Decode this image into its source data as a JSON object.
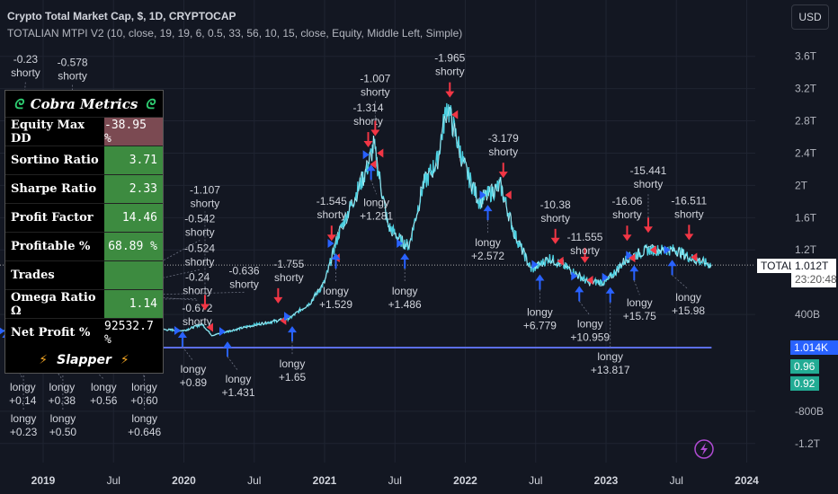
{
  "header": {
    "title": "Crypto Total Market Cap, $, 1D, CRYPTOCAP",
    "indicator": "TOTALIAN MTPI V2 (10, close, 19, 19, 6, 0.5, 33, 56, 10, 15, close, Equity, Middle Left, Simple)",
    "currency_button": "USD"
  },
  "colors": {
    "background": "#131722",
    "price_line": "#4dd0e1",
    "long": "#2962ff",
    "short": "#f23645",
    "equity_line": "#5b6ee8",
    "table_green": "#3d8b40",
    "table_red": "#7b4a52"
  },
  "price_tags": {
    "symbol": "TOTAL",
    "last": "1.012T",
    "countdown": "23:20:48",
    "equity": "1.014K",
    "green1": "0.96",
    "green2": "0.92"
  },
  "metrics": {
    "title": "Cobra Metrics",
    "rows": [
      {
        "label": "Equity Max DD",
        "value": "-38.95 %",
        "tone": "r"
      },
      {
        "label": "Sortino Ratio",
        "value": "3.71",
        "tone": "g"
      },
      {
        "label": "Sharpe Ratio",
        "value": "2.33",
        "tone": "g"
      },
      {
        "label": "Profit Factor",
        "value": "14.46",
        "tone": "g"
      },
      {
        "label": "Profitable %",
        "value": "68.89 %",
        "tone": "g"
      },
      {
        "label": "Trades",
        "value": "",
        "tone": "g"
      },
      {
        "label": "Omega Ratio Ω",
        "value": "1.14",
        "tone": "g"
      },
      {
        "label": "Net Profit %",
        "value": "92532.7 %",
        "tone": ""
      }
    ],
    "footer": "Slapper"
  },
  "chart_data": {
    "type": "line",
    "yunit": "USD",
    "ylim": [
      -1.4,
      3.8
    ],
    "yticks": [
      "3.6T",
      "3.2T",
      "2.8T",
      "2.4T",
      "2T",
      "1.6T",
      "1.2T",
      "400B",
      "-800B",
      "-1.2T"
    ],
    "ytick_values": [
      3.6,
      3.2,
      2.8,
      2.4,
      2.0,
      1.6,
      1.2,
      0.4,
      -0.8,
      -1.2
    ],
    "xticks": [
      "2019",
      "Jul",
      "2020",
      "Jul",
      "2021",
      "Jul",
      "2022",
      "Jul",
      "2023",
      "Jul",
      "2024"
    ],
    "xtick_values": [
      2019,
      2019.5,
      2020,
      2020.5,
      2021,
      2021.5,
      2022,
      2022.5,
      2023,
      2023.5,
      2024
    ],
    "grid": true,
    "price_T": [
      [
        2018.72,
        0.2
      ],
      [
        2019.0,
        0.13
      ],
      [
        2019.25,
        0.16
      ],
      [
        2019.45,
        0.35
      ],
      [
        2019.75,
        0.22
      ],
      [
        2020.0,
        0.2
      ],
      [
        2020.13,
        0.28
      ],
      [
        2020.2,
        0.14
      ],
      [
        2020.5,
        0.27
      ],
      [
        2020.75,
        0.35
      ],
      [
        2020.9,
        0.55
      ],
      [
        2021.0,
        0.8
      ],
      [
        2021.1,
        1.4
      ],
      [
        2021.3,
        2.2
      ],
      [
        2021.35,
        2.5
      ],
      [
        2021.45,
        1.5
      ],
      [
        2021.55,
        1.3
      ],
      [
        2021.6,
        1.25
      ],
      [
        2021.7,
        2.0
      ],
      [
        2021.8,
        2.3
      ],
      [
        2021.87,
        3.0
      ],
      [
        2022.0,
        2.2
      ],
      [
        2022.1,
        1.8
      ],
      [
        2022.25,
        2.0
      ],
      [
        2022.35,
        1.4
      ],
      [
        2022.47,
        0.95
      ],
      [
        2022.6,
        1.1
      ],
      [
        2022.75,
        0.95
      ],
      [
        2022.87,
        0.8
      ],
      [
        2023.0,
        0.8
      ],
      [
        2023.15,
        1.1
      ],
      [
        2023.3,
        1.2
      ],
      [
        2023.5,
        1.2
      ],
      [
        2023.6,
        1.1
      ],
      [
        2023.75,
        1.012
      ]
    ],
    "equity_line_value_T": 0.0,
    "equity_line_range": [
      2019.8,
      2023.75
    ],
    "signals": [
      {
        "t": 2018.76,
        "side": "short",
        "label": "-0.23",
        "word": "shorty"
      },
      {
        "t": 2018.87,
        "side": "short",
        "label": "-0.24",
        "word": "shorty"
      },
      {
        "t": 2019.0,
        "side": "short",
        "label": "-0.524",
        "word": "shorty"
      },
      {
        "t": 2019.17,
        "side": "short",
        "label": "-0.578",
        "word": "shorty"
      },
      {
        "t": 2019.5,
        "side": "short",
        "label": "-0.542",
        "word": "shorty"
      },
      {
        "t": 2019.7,
        "side": "short",
        "label": "-0.636",
        "word": "shorty"
      },
      {
        "t": 2019.75,
        "side": "short",
        "label": "-0.672",
        "word": "shorty"
      },
      {
        "t": 2020.15,
        "side": "short",
        "label": "-1.107",
        "word": "shorty"
      },
      {
        "t": 2020.67,
        "side": "short",
        "label": "-1.755",
        "word": "shorty"
      },
      {
        "t": 2021.05,
        "side": "short",
        "label": "-1.545",
        "word": "shorty"
      },
      {
        "t": 2021.31,
        "side": "short",
        "label": "-1.314",
        "word": "shorty"
      },
      {
        "t": 2021.36,
        "side": "short",
        "label": "-1.007",
        "word": "shorty"
      },
      {
        "t": 2021.89,
        "side": "short",
        "label": "-1.965",
        "word": "shorty"
      },
      {
        "t": 2022.27,
        "side": "short",
        "label": "-3.179",
        "word": "shorty"
      },
      {
        "t": 2022.64,
        "side": "short",
        "label": "-10.38",
        "word": "shorty"
      },
      {
        "t": 2022.85,
        "side": "short",
        "label": "-11.555",
        "word": "shorty"
      },
      {
        "t": 2023.15,
        "side": "short",
        "label": "-16.06",
        "word": "shorty"
      },
      {
        "t": 2023.3,
        "side": "short",
        "label": "-15.441",
        "word": "shorty"
      },
      {
        "t": 2023.59,
        "side": "short",
        "label": "-16.511",
        "word": "shorty"
      },
      {
        "t": 2018.74,
        "side": "long",
        "label": "+0.14",
        "word": "longy"
      },
      {
        "t": 2018.86,
        "side": "long",
        "label": "+0.23",
        "word": "longy"
      },
      {
        "t": 2018.98,
        "side": "long",
        "label": "+0.38",
        "word": "longy"
      },
      {
        "t": 2019.14,
        "side": "long",
        "label": "+0.50",
        "word": "longy"
      },
      {
        "t": 2019.2,
        "side": "long",
        "label": "+0.56",
        "word": "longy"
      },
      {
        "t": 2019.68,
        "side": "long",
        "label": "+0.60",
        "word": "longy"
      },
      {
        "t": 2019.72,
        "side": "long",
        "label": "+0.646",
        "word": "longy"
      },
      {
        "t": 2019.99,
        "side": "long",
        "label": "+0.89",
        "word": "longy"
      },
      {
        "t": 2020.31,
        "side": "long",
        "label": "+1.431",
        "word": "longy"
      },
      {
        "t": 2020.77,
        "side": "long",
        "label": "+1.65",
        "word": "longy"
      },
      {
        "t": 2021.08,
        "side": "long",
        "label": "+1.529",
        "word": "longy"
      },
      {
        "t": 2021.33,
        "side": "long",
        "label": "+1.281",
        "word": "longy"
      },
      {
        "t": 2021.57,
        "side": "long",
        "label": "+1.486",
        "word": "longy"
      },
      {
        "t": 2022.16,
        "side": "long",
        "label": "+2.572",
        "word": "longy"
      },
      {
        "t": 2022.53,
        "side": "long",
        "label": "+6.779",
        "word": "longy"
      },
      {
        "t": 2022.81,
        "side": "long",
        "label": "+10.959",
        "word": "longy"
      },
      {
        "t": 2023.03,
        "side": "long",
        "label": "+13.817",
        "word": "longy"
      },
      {
        "t": 2023.2,
        "side": "long",
        "label": "+15.75",
        "word": "longy"
      },
      {
        "t": 2023.47,
        "side": "long",
        "label": "+15.98",
        "word": "longy"
      }
    ]
  }
}
